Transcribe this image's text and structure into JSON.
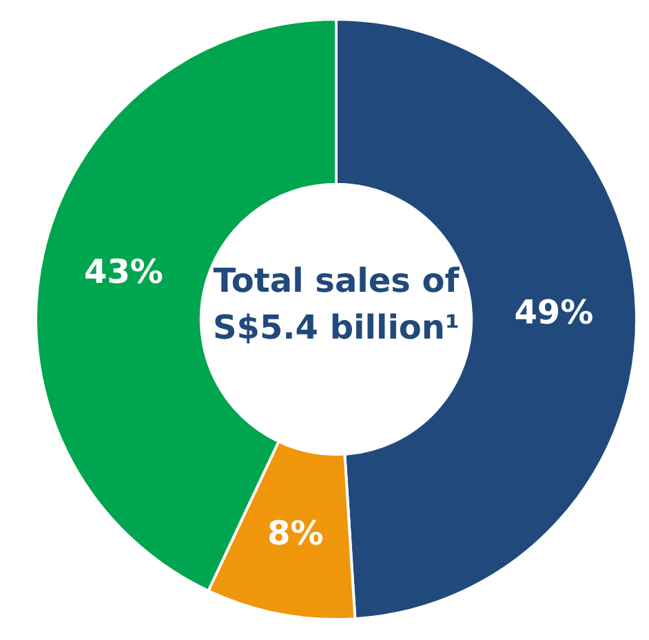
{
  "chart_data": {
    "type": "donut",
    "title": "Total sales of S$5.4 billion¹",
    "categories": [
      null,
      null,
      null
    ],
    "values": [
      49,
      8,
      43
    ],
    "colors": [
      "#21497c",
      "#f0960a",
      "#00a54f"
    ],
    "value_labels": [
      "49%",
      "8%",
      "43%"
    ]
  }
}
